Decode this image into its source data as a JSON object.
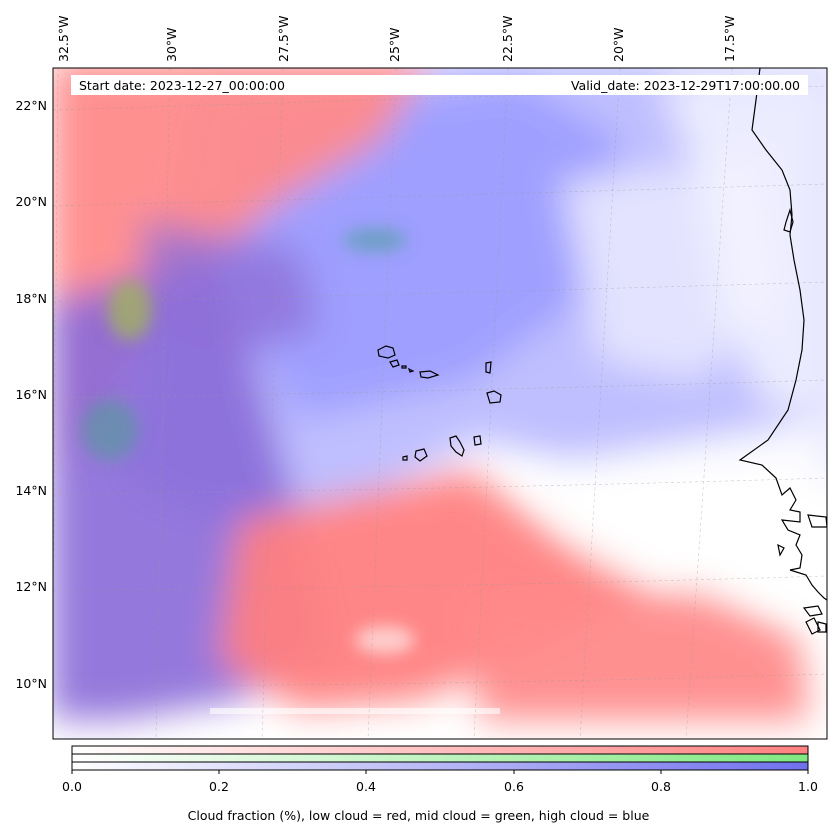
{
  "map": {
    "lon_labels": [
      "32.5°W",
      "30°W",
      "27.5°W",
      "25°W",
      "22.5°W",
      "20°W",
      "17.5°W"
    ],
    "lat_labels": [
      "22°N",
      "20°N",
      "18°N",
      "16°N",
      "14°N",
      "12°N",
      "10°N"
    ],
    "start_date": "Start date: 2023-12-27_00:00:00",
    "valid_date": "Valid_date: 2023-12-29T17:00:00.00"
  },
  "colorbar": {
    "ticks": [
      "0.0",
      "0.2",
      "0.4",
      "0.6",
      "0.8",
      "1.0"
    ],
    "caption": "Cloud fraction (%), low cloud = red, mid cloud = green, high cloud = blue",
    "colors": {
      "low": "#ff8080",
      "mid": "#80e080",
      "high": "#8080ff"
    }
  }
}
